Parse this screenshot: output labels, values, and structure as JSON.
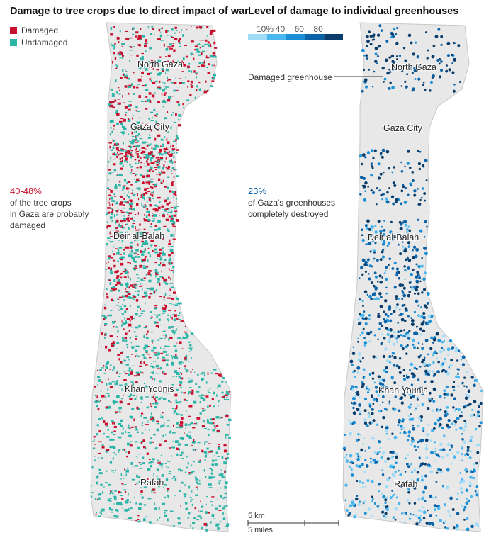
{
  "left_map": {
    "title": "Damage to tree crops due to direct impact of war",
    "legend": [
      {
        "label": "Damaged",
        "color": "#c8102e"
      },
      {
        "label": "Undamaged",
        "color": "#2bb5a8"
      }
    ],
    "stat": {
      "value": "40-48%",
      "value_color": "#c8102e",
      "lines": [
        "of the tree crops",
        "in Gaza are probably",
        "damaged"
      ]
    },
    "cities": [
      "North Gaza",
      "Gaza City",
      "Deir al-Balah",
      "Khan Younis",
      "Rafah"
    ]
  },
  "right_map": {
    "title": "Level of damage to individual greenhouses",
    "scale": {
      "labels": [
        "10%",
        "40",
        "60",
        "80"
      ],
      "colors": [
        "#9fdcf7",
        "#4ab8ee",
        "#1a8fd6",
        "#0d63a8",
        "#0a3d6b"
      ]
    },
    "annotation": "Damaged greenhouse",
    "stat": {
      "value": "23%",
      "value_color": "#0d63a8",
      "lines": [
        "of Gaza's greenhouses",
        "completely destroyed"
      ]
    },
    "cities": [
      "North Gaza",
      "Gaza City",
      "Deir al-Balah",
      "Khan Younis",
      "Rafah"
    ]
  },
  "scale_bar": {
    "km": "5 km",
    "miles": "5 miles"
  }
}
